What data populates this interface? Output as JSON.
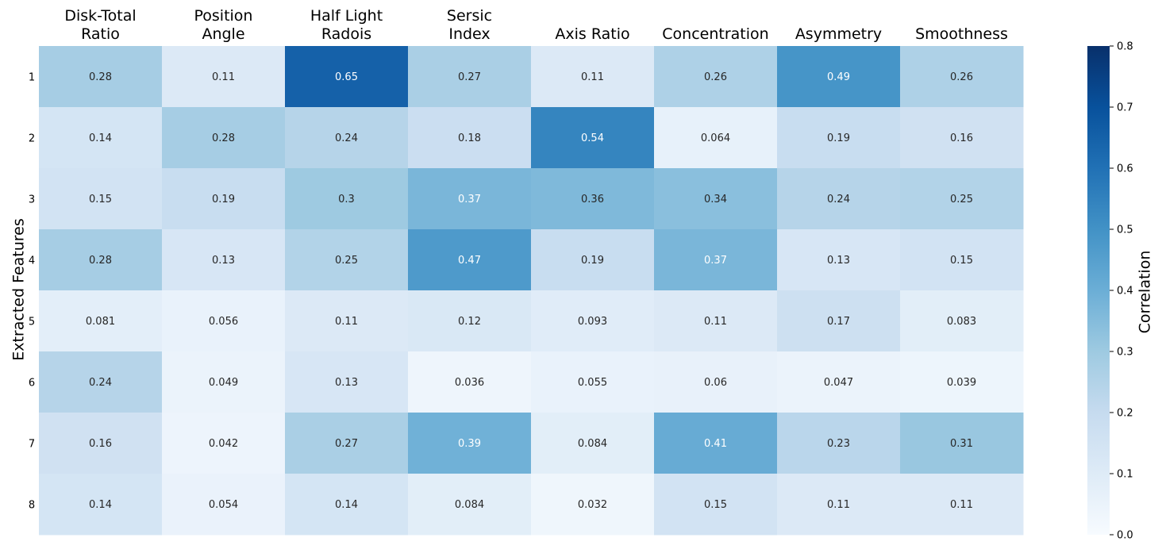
{
  "chart_data": {
    "type": "heatmap",
    "columns": [
      [
        "Disk-Total",
        "Ratio"
      ],
      [
        "Position",
        "Angle"
      ],
      [
        "Half Light",
        "Radois"
      ],
      [
        "Sersic",
        "Index"
      ],
      [
        "Axis Ratio"
      ],
      [
        "Concentration"
      ],
      [
        "Asymmetry"
      ],
      [
        "Smoothness"
      ]
    ],
    "rows": [
      "1",
      "2",
      "3",
      "4",
      "5",
      "6",
      "7",
      "8"
    ],
    "values": [
      [
        "0.28",
        "0.11",
        "0.65",
        "0.27",
        "0.11",
        "0.26",
        "0.49",
        "0.26"
      ],
      [
        "0.14",
        "0.28",
        "0.24",
        "0.18",
        "0.54",
        "0.064",
        "0.19",
        "0.16"
      ],
      [
        "0.15",
        "0.19",
        "0.3",
        "0.37",
        "0.36",
        "0.34",
        "0.24",
        "0.25"
      ],
      [
        "0.28",
        "0.13",
        "0.25",
        "0.47",
        "0.19",
        "0.37",
        "0.13",
        "0.15"
      ],
      [
        "0.081",
        "0.056",
        "0.11",
        "0.12",
        "0.093",
        "0.11",
        "0.17",
        "0.083"
      ],
      [
        "0.24",
        "0.049",
        "0.13",
        "0.036",
        "0.055",
        "0.06",
        "0.047",
        "0.039"
      ],
      [
        "0.16",
        "0.042",
        "0.27",
        "0.39",
        "0.084",
        "0.41",
        "0.23",
        "0.31"
      ],
      [
        "0.14",
        "0.054",
        "0.14",
        "0.084",
        "0.032",
        "0.15",
        "0.11",
        "0.11"
      ]
    ],
    "ylabel": "Extracted Features",
    "colorbar": {
      "label": "Correlation",
      "range": [
        0,
        0.8
      ],
      "ticks": [
        "0.0",
        "0.1",
        "0.2",
        "0.3",
        "0.4",
        "0.5",
        "0.6",
        "0.7",
        "0.8"
      ],
      "colormap": "Blues"
    },
    "grid": false
  }
}
